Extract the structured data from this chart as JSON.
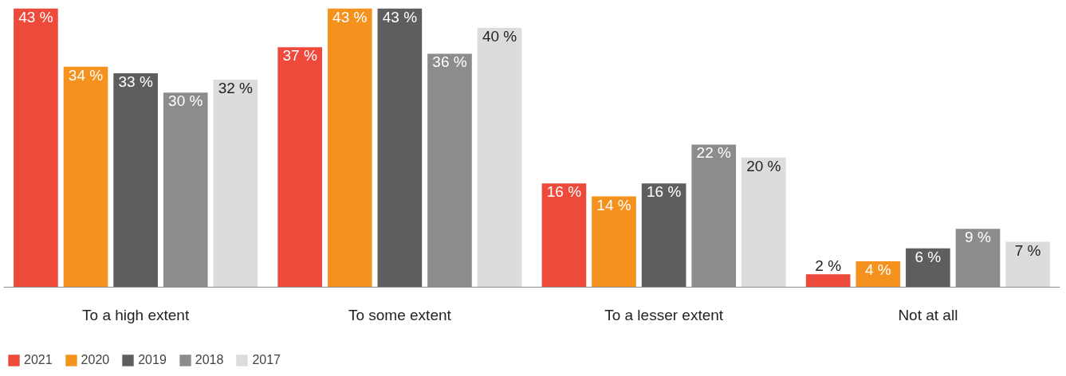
{
  "chart_data": {
    "type": "bar",
    "categories": [
      "To a high extent",
      "To some extent",
      "To a lesser extent",
      "Not at all"
    ],
    "series": [
      {
        "name": "2021",
        "color": "#ee4a3c",
        "values": [
          43,
          37,
          16,
          2
        ],
        "value_labels": [
          "43 %",
          "37 %",
          "16 %",
          "2 %"
        ]
      },
      {
        "name": "2020",
        "color": "#f5921e",
        "values": [
          34,
          43,
          14,
          4
        ],
        "value_labels": [
          "34 %",
          "43 %",
          "14 %",
          "4 %"
        ]
      },
      {
        "name": "2019",
        "color": "#5e5e60",
        "values": [
          33,
          43,
          16,
          6
        ],
        "value_labels": [
          "33 %",
          "43 %",
          "16 %",
          "6 %"
        ]
      },
      {
        "name": "2018",
        "color": "#8c8c8f",
        "values": [
          30,
          36,
          22,
          9
        ],
        "value_labels": [
          "30 %",
          "36 %",
          "22 %",
          "9 %"
        ]
      },
      {
        "name": "2017",
        "color": "#dcdcde",
        "values": [
          32,
          40,
          20,
          7
        ],
        "value_labels": [
          "32 %",
          "40 %",
          "20 %",
          "7 %"
        ]
      }
    ],
    "grid": false,
    "legend": "bottom left"
  }
}
